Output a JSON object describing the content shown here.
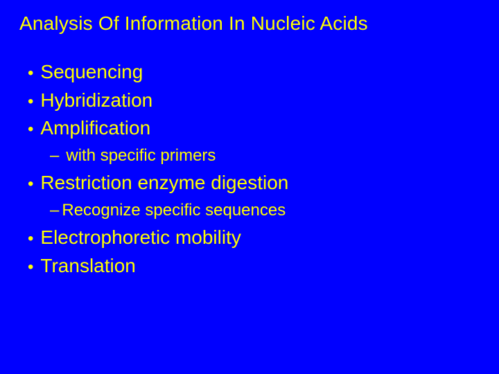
{
  "slide": {
    "title": "Analysis Of Information In Nucleic Acids",
    "background_color": "#0000ff",
    "text_color": "#ffff00",
    "title_fontsize": 28,
    "bullet_fontsize": 28,
    "sub_fontsize": 24,
    "font_family": "Verdana",
    "bullets": [
      {
        "label": "Sequencing",
        "subs": []
      },
      {
        "label": "Hybridization",
        "subs": []
      },
      {
        "label": "Amplification",
        "subs": [
          {
            "label": " with specific primers"
          }
        ]
      },
      {
        "label": "Restriction enzyme digestion",
        "subs": [
          {
            "label": "Recognize specific sequences"
          }
        ]
      },
      {
        "label": "Electrophoretic mobility",
        "subs": []
      },
      {
        "label": "Translation",
        "subs": []
      }
    ],
    "bullet_marker": "•",
    "sub_marker": "–"
  }
}
